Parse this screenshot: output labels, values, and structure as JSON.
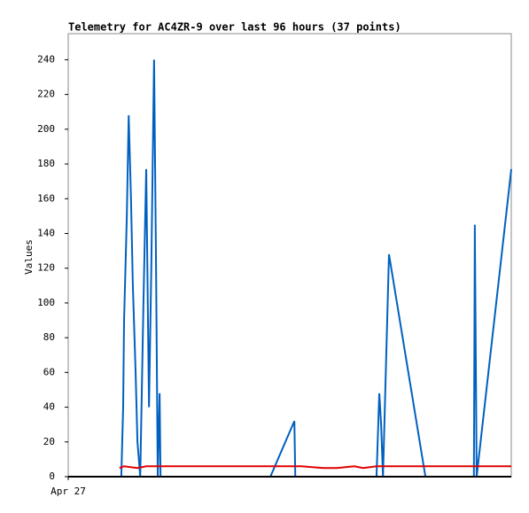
{
  "chart_data": {
    "type": "line",
    "title": "Telemetry for AC4ZR-9 over last 96 hours (37 points)",
    "y_label": "Values",
    "xlim": [
      0,
      96
    ],
    "xticks": [
      {
        "value": 0,
        "label": "Apr 27"
      }
    ],
    "ylim": [
      0,
      255
    ],
    "yticks": [
      0,
      20,
      40,
      60,
      80,
      100,
      120,
      140,
      160,
      180,
      200,
      220,
      240
    ],
    "series": [
      {
        "color": "#0060c0",
        "x": [
          11.5,
          11.9,
          12.1,
          12.7,
          13.1,
          13.6,
          14.0,
          14.6,
          15.0,
          15.6,
          16.3,
          16.9,
          17.5,
          18.0,
          18.6,
          19.0,
          19.4,
          19.8,
          20.0,
          43.8,
          49.0,
          49.2,
          66.8,
          67.4,
          67.8,
          68.2,
          69.5,
          77.4,
          87.9,
          88.1,
          88.5,
          96.0
        ],
        "values": [
          0,
          40,
          90,
          150,
          208,
          160,
          110,
          60,
          20,
          0,
          100,
          177,
          40,
          120,
          240,
          130,
          0,
          48,
          0,
          0,
          32,
          0,
          0,
          48,
          30,
          0,
          128,
          0,
          0,
          145,
          0,
          177
        ]
      },
      {
        "color": "#e00000",
        "x": [
          11.1,
          12.1,
          15.0,
          16.9,
          42.8,
          50.5,
          55.3,
          58.2,
          62.0,
          63.9,
          66.8,
          96.0
        ],
        "values": [
          5,
          6,
          5,
          6,
          6,
          6,
          5,
          5,
          6,
          5,
          6,
          6
        ]
      }
    ]
  }
}
